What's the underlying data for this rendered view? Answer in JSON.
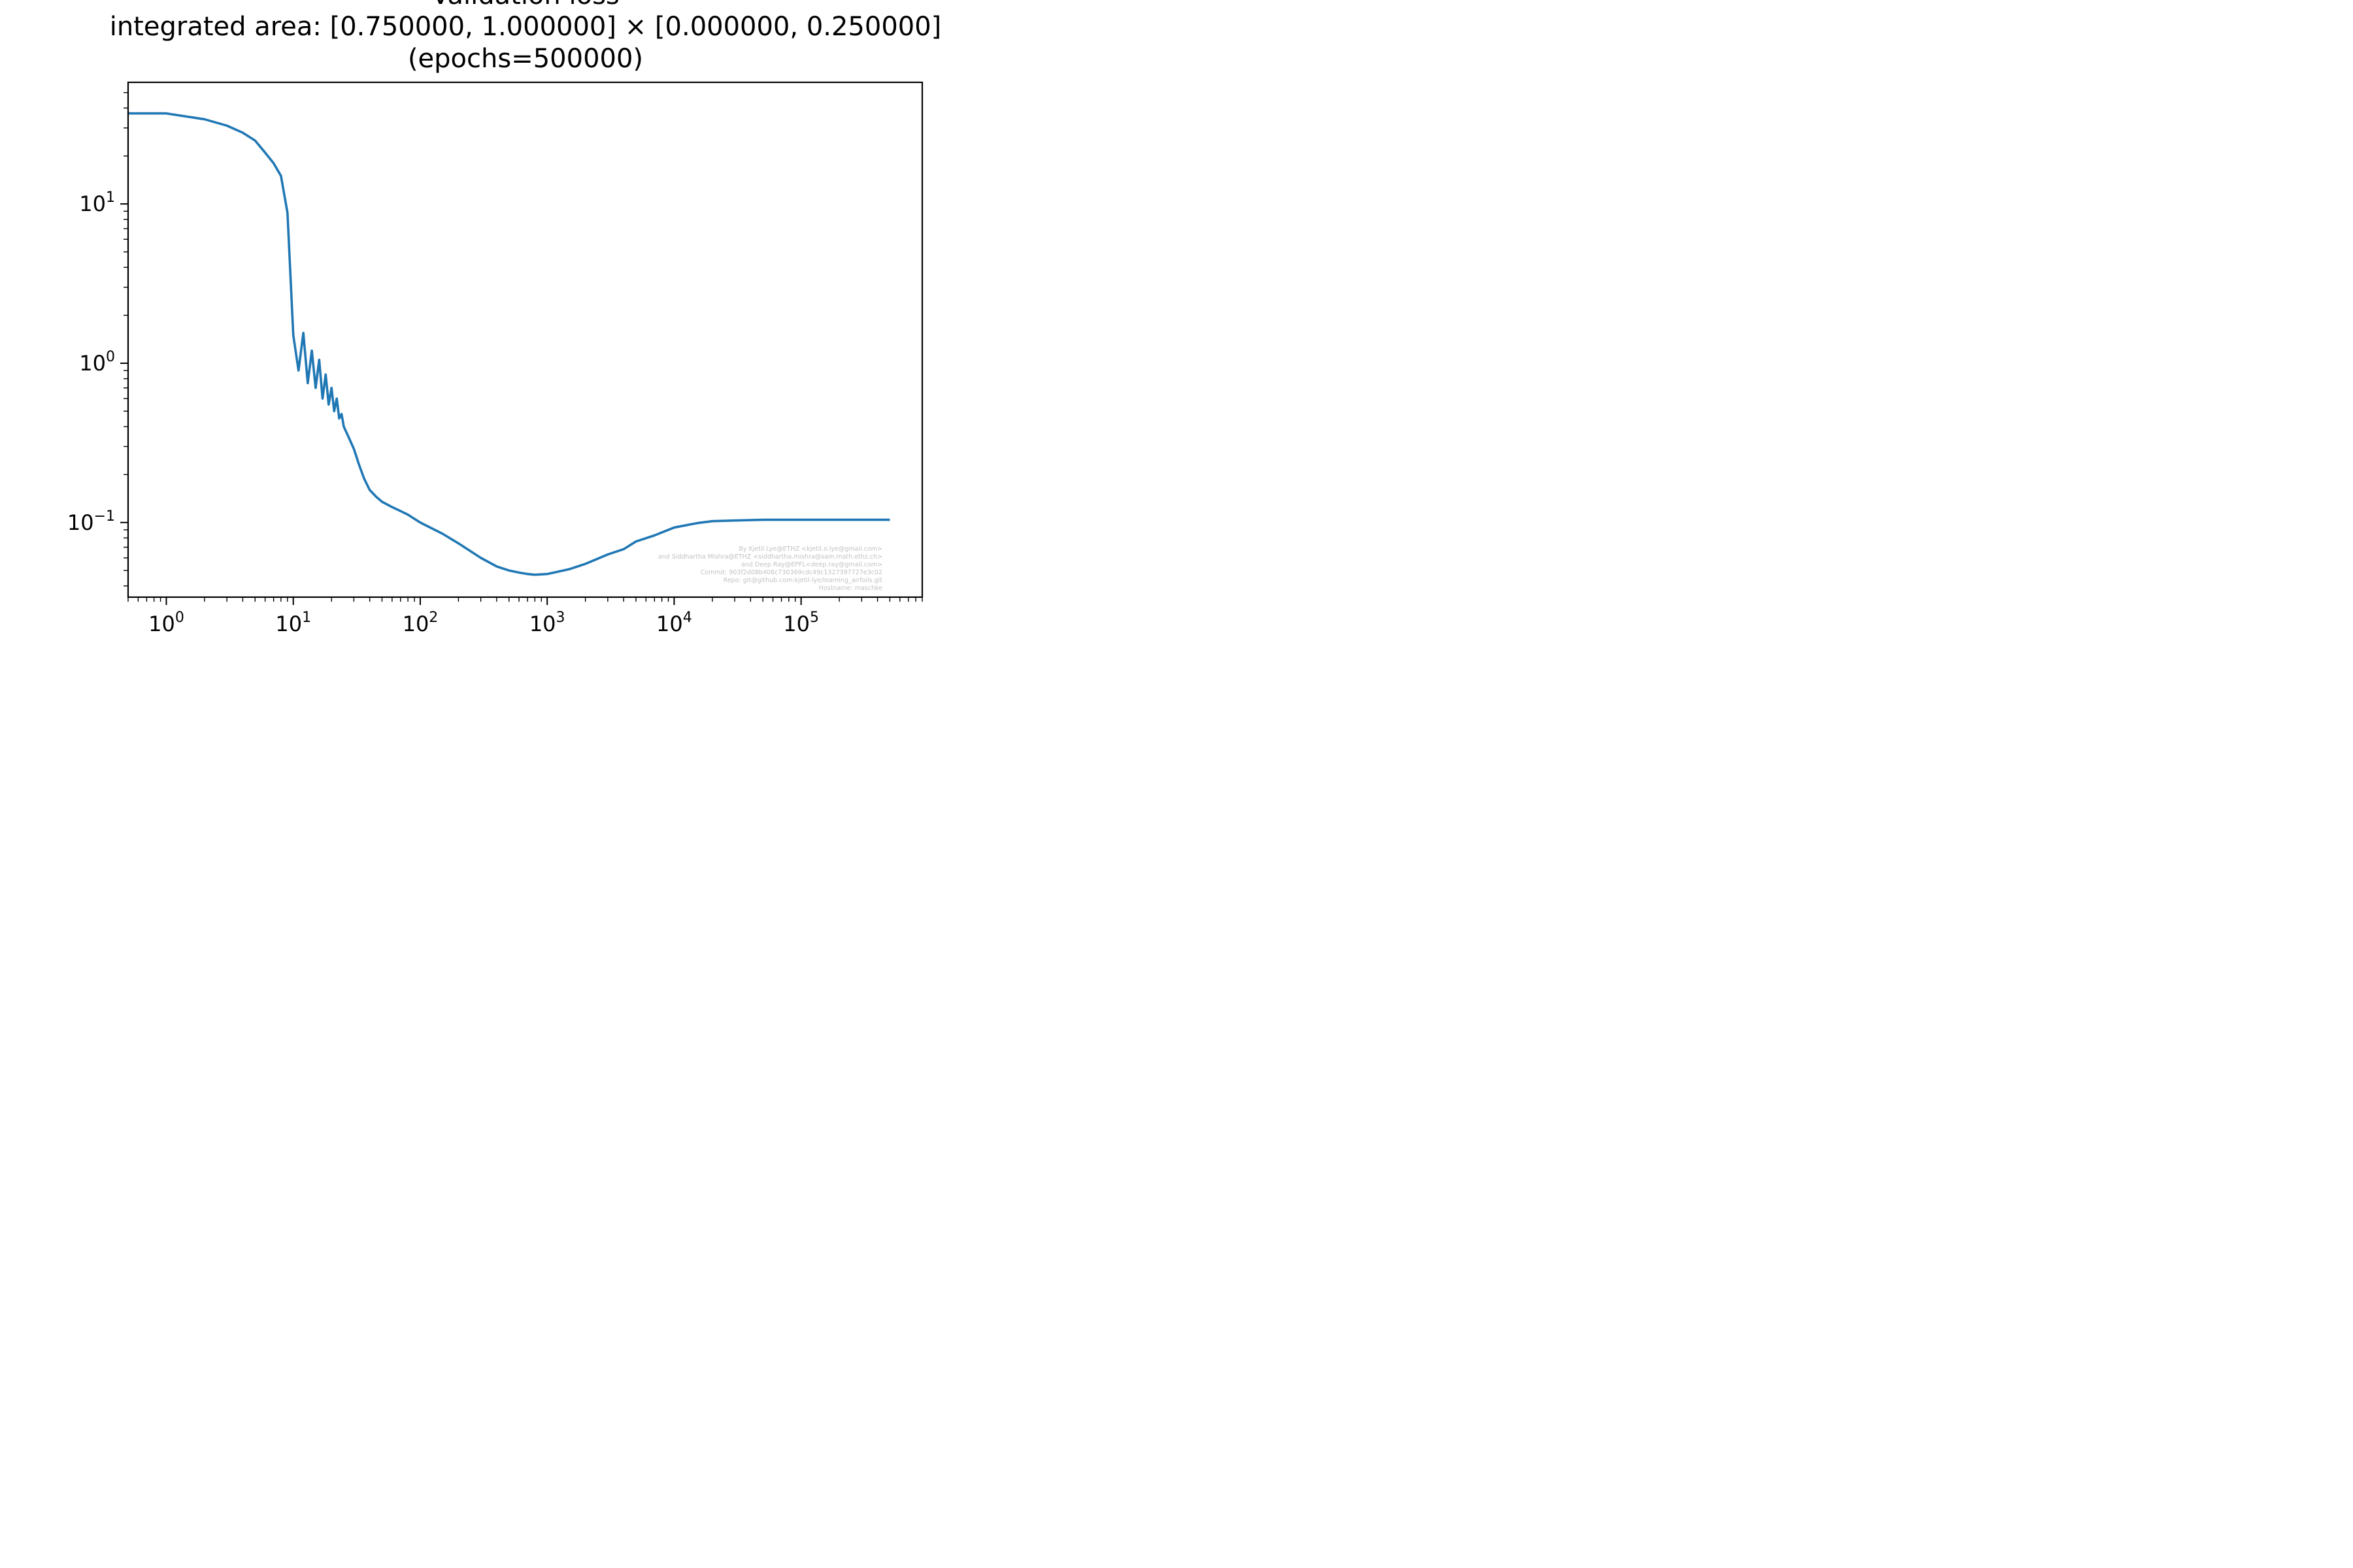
{
  "chart_data": {
    "type": "line",
    "title_lines": [
      "Validation loss",
      "integrated area: [0.750000, 1.000000] × [0.000000, 0.250000]",
      "(epochs=500000)"
    ],
    "xlabel": "",
    "ylabel": "",
    "x_scale": "log",
    "y_scale": "log",
    "xlim": [
      0.5,
      900000
    ],
    "ylim": [
      0.034,
      58
    ],
    "grid": false,
    "legend": "none",
    "line_color": "#1f77b4",
    "x_ticks": [
      {
        "base": "10",
        "exp": "0",
        "value": 1
      },
      {
        "base": "10",
        "exp": "1",
        "value": 10
      },
      {
        "base": "10",
        "exp": "2",
        "value": 100
      },
      {
        "base": "10",
        "exp": "3",
        "value": 1000
      },
      {
        "base": "10",
        "exp": "4",
        "value": 10000
      },
      {
        "base": "10",
        "exp": "5",
        "value": 100000
      }
    ],
    "y_ticks": [
      {
        "base": "10",
        "exp": "1",
        "value": 10
      },
      {
        "base": "10",
        "exp": "0",
        "value": 1
      },
      {
        "base": "10",
        "exp": "−1",
        "value": 0.1
      }
    ],
    "series": [
      {
        "x": [
          0.5,
          1,
          2,
          3,
          4,
          5,
          6,
          7,
          8,
          9,
          10,
          11,
          12,
          13,
          14,
          15,
          16,
          17,
          18,
          19,
          20,
          21,
          22,
          23,
          24,
          25,
          27,
          30,
          33,
          36,
          40,
          45,
          50,
          60,
          70,
          80,
          100,
          150,
          200,
          300,
          400,
          500,
          600,
          700,
          800,
          1000,
          1200,
          1500,
          2000,
          3000,
          4000,
          5000,
          7000,
          10000,
          15000,
          20000,
          30000,
          50000,
          100000,
          200000,
          500000
        ],
        "y": [
          37,
          37,
          34,
          31,
          28,
          25,
          21,
          18,
          15,
          8.8,
          1.5,
          0.9,
          1.55,
          0.75,
          1.2,
          0.7,
          1.05,
          0.6,
          0.85,
          0.55,
          0.7,
          0.5,
          0.6,
          0.45,
          0.48,
          0.4,
          0.35,
          0.29,
          0.23,
          0.19,
          0.16,
          0.145,
          0.135,
          0.125,
          0.118,
          0.112,
          0.1,
          0.085,
          0.074,
          0.06,
          0.053,
          0.05,
          0.0485,
          0.0475,
          0.047,
          0.0475,
          0.049,
          0.051,
          0.055,
          0.063,
          0.068,
          0.076,
          0.083,
          0.093,
          0.099,
          0.102,
          0.103,
          0.104,
          0.104,
          0.104,
          0.104
        ]
      }
    ]
  },
  "credits": [
    "By Kjetil Lye@ETHZ <kjetil.o.lye@gmail.com>",
    "and Siddhartha Mishra@ETHZ <siddhartha.mishra@sam.math.ethz.ch>",
    "and Deep Ray@EPFL<deep.ray@gmail.com>",
    "Commit: 903f2d08b408c730369cdc49c1327397727e3c02",
    "Repo: git@github.com:kjetil-lye/learning_airfoils.git",
    "Hostname: maschke"
  ]
}
